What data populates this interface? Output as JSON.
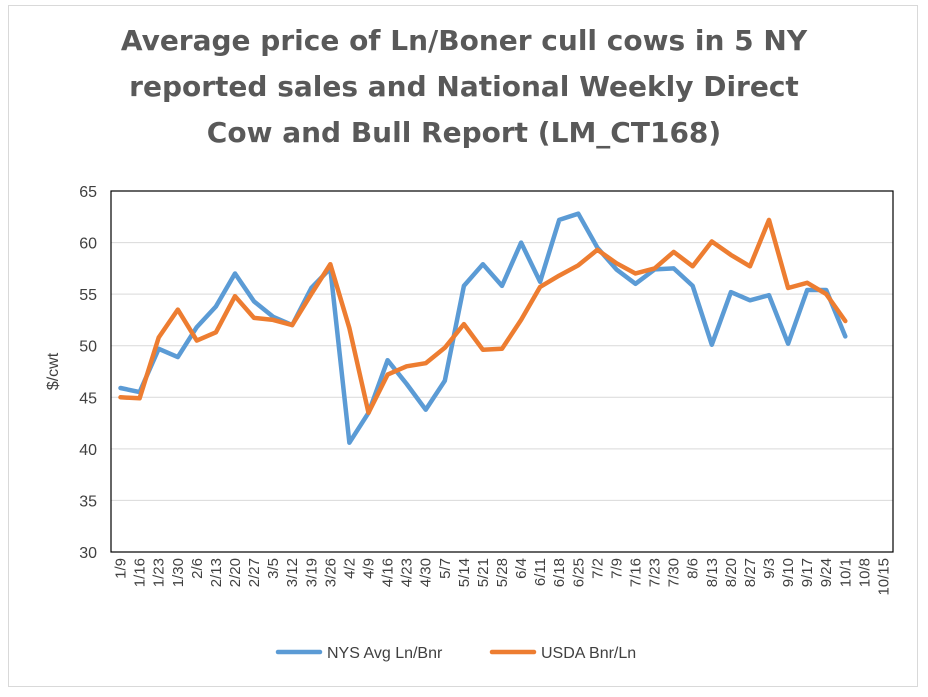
{
  "chart_data": {
    "type": "line",
    "title_lines": [
      "Average price of Ln/Boner cull cows in 5 NY",
      "reported sales and National Weekly Direct",
      "Cow and Bull Report (LM_CT168)"
    ],
    "xlabel": "",
    "ylabel": "$/cwt",
    "ylim": [
      30,
      65
    ],
    "yticks": [
      30,
      35,
      40,
      45,
      50,
      55,
      60,
      65
    ],
    "grid": true,
    "legend_position": "bottom",
    "categories": [
      "1/9",
      "1/16",
      "1/23",
      "1/30",
      "2/6",
      "2/13",
      "2/20",
      "2/27",
      "3/5",
      "3/12",
      "3/19",
      "3/26",
      "4/2",
      "4/9",
      "4/16",
      "4/23",
      "4/30",
      "5/7",
      "5/14",
      "5/21",
      "5/28",
      "6/4",
      "6/11",
      "6/18",
      "6/25",
      "7/2",
      "7/9",
      "7/16",
      "7/23",
      "7/30",
      "8/6",
      "8/13",
      "8/20",
      "8/27",
      "9/3",
      "9/10",
      "9/17",
      "9/24",
      "10/1",
      "10/8",
      "10/15"
    ],
    "series": [
      {
        "name": "NYS Avg Ln/Bnr",
        "color": "#5b9bd5",
        "values": [
          45.9,
          45.5,
          49.7,
          48.9,
          51.8,
          53.8,
          57.0,
          54.3,
          52.8,
          52.0,
          55.6,
          57.5,
          40.6,
          43.5,
          48.6,
          46.3,
          43.8,
          46.6,
          55.8,
          57.9,
          55.8,
          60.0,
          56.2,
          62.2,
          62.8,
          59.5,
          57.4,
          56.0,
          57.4,
          57.5,
          55.8,
          50.1,
          55.2,
          54.4,
          54.9,
          50.2,
          55.4,
          55.4,
          50.9,
          null,
          null
        ]
      },
      {
        "name": "USDA Bnr/Ln",
        "color": "#ed7d31",
        "values": [
          45.0,
          44.9,
          50.8,
          53.5,
          50.5,
          51.3,
          54.8,
          52.7,
          52.5,
          52.0,
          55.0,
          57.9,
          51.7,
          43.5,
          47.2,
          48.0,
          48.3,
          49.8,
          52.1,
          49.6,
          49.7,
          52.5,
          55.7,
          56.8,
          57.8,
          59.3,
          58.0,
          57.0,
          57.5,
          59.1,
          57.7,
          60.1,
          58.8,
          57.7,
          62.2,
          55.6,
          56.1,
          55.0,
          52.4,
          null,
          null
        ]
      }
    ]
  }
}
